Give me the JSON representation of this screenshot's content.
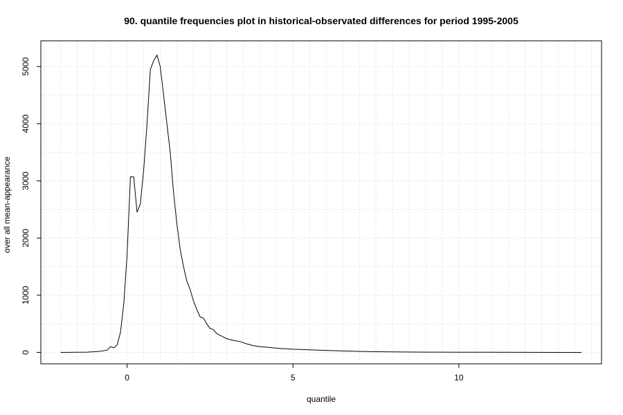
{
  "chart_data": {
    "type": "line",
    "title": "90. quantile frequencies plot in historical-observated differences for period 1995-2005",
    "xlabel": "quantile",
    "ylabel": "over all mean-appearance",
    "xlim": [
      -2.6,
      14.3
    ],
    "ylim": [
      -200,
      5450
    ],
    "x_ticks": [
      0,
      5,
      10
    ],
    "y_ticks": [
      0,
      1000,
      2000,
      3000,
      4000,
      5000
    ],
    "x_grid_step": 0.5,
    "y_grid_step": 500,
    "grid": true,
    "series": [
      {
        "x": [
          -2.0,
          -1.5,
          -1.2,
          -1.0,
          -0.8,
          -0.6,
          -0.5,
          -0.4,
          -0.3,
          -0.2,
          -0.1,
          0.0,
          0.1,
          0.2,
          0.3,
          0.4,
          0.5,
          0.6,
          0.7,
          0.8,
          0.9,
          1.0,
          1.1,
          1.2,
          1.3,
          1.4,
          1.5,
          1.6,
          1.7,
          1.8,
          1.9,
          2.0,
          2.1,
          2.2,
          2.3,
          2.4,
          2.5,
          2.6,
          2.7,
          2.8,
          2.9,
          3.0,
          3.2,
          3.4,
          3.6,
          3.8,
          4.0,
          4.3,
          4.6,
          5.0,
          5.5,
          6.0,
          6.5,
          7.0,
          7.5,
          8.0,
          9.0,
          10.0,
          11.0,
          12.0,
          13.0,
          13.7
        ],
        "y": [
          0,
          2,
          5,
          10,
          20,
          40,
          100,
          80,
          130,
          350,
          850,
          1700,
          3070,
          3070,
          2450,
          2600,
          3200,
          4000,
          4950,
          5100,
          5200,
          5000,
          4500,
          4000,
          3500,
          2800,
          2250,
          1800,
          1500,
          1250,
          1100,
          900,
          750,
          620,
          600,
          500,
          420,
          400,
          330,
          300,
          270,
          240,
          210,
          190,
          150,
          120,
          100,
          85,
          70,
          55,
          45,
          35,
          25,
          18,
          12,
          8,
          5,
          3,
          2,
          1,
          0,
          0
        ]
      }
    ]
  }
}
